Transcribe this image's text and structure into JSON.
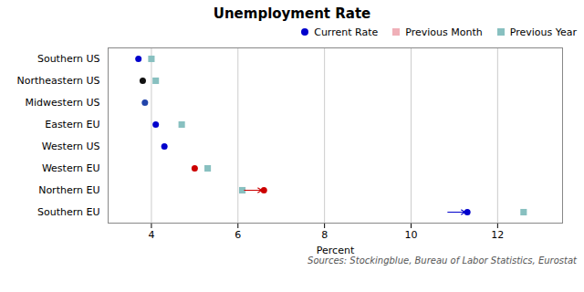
{
  "chart_data": {
    "type": "dot",
    "title": "Unemployment Rate",
    "xlabel": "Percent",
    "caption": "Sources: Stockingblue, Bureau of Labor Statistics, Eurostat",
    "categories": [
      "Southern US",
      "Northeastern US",
      "Midwestern US",
      "Eastern EU",
      "Western US",
      "Western EU",
      "Northern EU",
      "Southern EU"
    ],
    "series": [
      {
        "name": "Current Rate",
        "marker": "circle",
        "values": [
          3.7,
          3.8,
          3.85,
          4.1,
          4.3,
          5.0,
          6.6,
          11.3
        ],
        "colors": [
          "#0000cc",
          "#111111",
          "#2244aa",
          "#0000cc",
          "#0000cc",
          "#cc0000",
          "#cc0000",
          "#0000cc"
        ]
      },
      {
        "name": "Previous Month",
        "marker": "square",
        "color": "#f0b0b8",
        "values": [
          null,
          null,
          null,
          null,
          null,
          null,
          6.1,
          null
        ]
      },
      {
        "name": "Previous Year",
        "marker": "square",
        "color": "#88c0c0",
        "values": [
          4.0,
          4.1,
          null,
          4.7,
          null,
          5.3,
          6.1,
          12.6
        ]
      }
    ],
    "arrows": [
      {
        "category": "Northern EU",
        "from": 6.15,
        "to": 6.55,
        "color": "#cc0000"
      },
      {
        "category": "Southern EU",
        "from": 10.85,
        "to": 11.25,
        "color": "#0000cc"
      }
    ],
    "xlim": [
      3.0,
      13.5
    ],
    "xticks": [
      4,
      6,
      8,
      10,
      12
    ],
    "grid": true,
    "legend": "upper right"
  }
}
